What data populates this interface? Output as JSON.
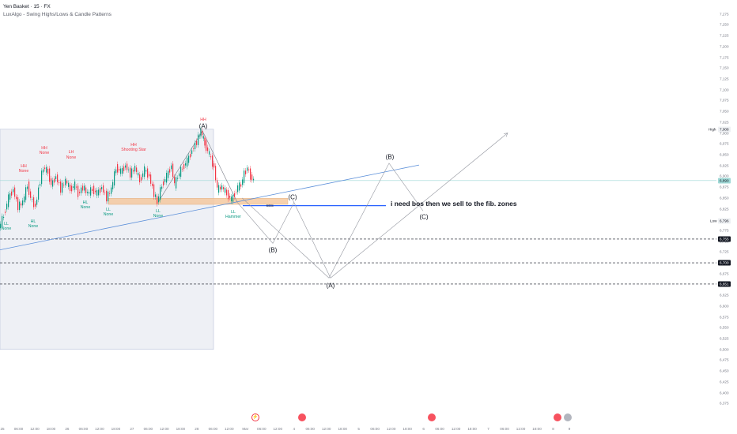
{
  "header": {
    "title": "Yen Basket · 15 · FX",
    "indicator": "LuxAlgo - Swing Highs/Lows & Candle Patterns"
  },
  "colors": {
    "up": "#089981",
    "down": "#f23645",
    "trendline": "#5b8fd9",
    "bos": "#2962ff",
    "zone": "#f5c9a0",
    "box": "#eef0f5"
  },
  "chart_data": {
    "type": "candlestick",
    "symbol": "Yen Basket",
    "interval": "15",
    "ylim": [
      6.35,
      7.3
    ],
    "y_ticks": [
      "7,275",
      "7,250",
      "7,225",
      "7,200",
      "7,175",
      "7,150",
      "7,125",
      "7,100",
      "7,075",
      "7,050",
      "7,025",
      "7,000",
      "6,975",
      "6,950",
      "6,925",
      "6,900",
      "6,875",
      "6,850",
      "6,825",
      "6,800",
      "6,775",
      "6,750",
      "6,725",
      "6,700",
      "6,675",
      "6,650",
      "6,625",
      "6,600",
      "6,575",
      "6,550",
      "6,525",
      "6,500",
      "6,475",
      "6,450",
      "6,425",
      "6,400",
      "6,375"
    ],
    "x_ticks": [
      "25",
      "06:00",
      "12:00",
      "18:00",
      "26",
      "06:00",
      "12:00",
      "18:00",
      "27",
      "06:00",
      "12:00",
      "18:00",
      "28",
      "06:00",
      "12:00",
      "Mar",
      "06:00",
      "12:00",
      "4",
      "06:00",
      "12:00",
      "18:00",
      "5",
      "06:00",
      "12:00",
      "18:00",
      "6",
      "06:00",
      "12:00",
      "18:00",
      "7",
      "06:00",
      "12:00",
      "18:00",
      "8",
      "9"
    ],
    "series_path": [
      [
        0,
        6.78
      ],
      [
        6,
        6.81
      ],
      [
        12,
        6.85
      ],
      [
        18,
        6.87
      ],
      [
        24,
        6.83
      ],
      [
        30,
        6.84
      ],
      [
        36,
        6.88
      ],
      [
        40,
        6.85
      ],
      [
        46,
        6.83
      ],
      [
        52,
        6.89
      ],
      [
        56,
        6.92
      ],
      [
        62,
        6.91
      ],
      [
        66,
        6.88
      ],
      [
        72,
        6.9
      ],
      [
        78,
        6.87
      ],
      [
        84,
        6.89
      ],
      [
        90,
        6.87
      ],
      [
        96,
        6.88
      ],
      [
        100,
        6.86
      ],
      [
        106,
        6.875
      ],
      [
        112,
        6.86
      ],
      [
        118,
        6.87
      ],
      [
        124,
        6.86
      ],
      [
        130,
        6.875
      ],
      [
        136,
        6.85
      ],
      [
        142,
        6.87
      ],
      [
        148,
        6.92
      ],
      [
        154,
        6.91
      ],
      [
        160,
        6.925
      ],
      [
        166,
        6.905
      ],
      [
        172,
        6.92
      ],
      [
        178,
        6.89
      ],
      [
        184,
        6.915
      ],
      [
        190,
        6.9
      ],
      [
        196,
        6.86
      ],
      [
        200,
        6.84
      ],
      [
        206,
        6.88
      ],
      [
        212,
        6.9
      ],
      [
        218,
        6.925
      ],
      [
        222,
        6.88
      ],
      [
        226,
        6.9
      ],
      [
        232,
        6.92
      ],
      [
        238,
        6.935
      ],
      [
        244,
        6.96
      ],
      [
        250,
        6.98
      ],
      [
        255,
        7.005
      ],
      [
        260,
        6.975
      ],
      [
        266,
        6.95
      ],
      [
        272,
        6.92
      ],
      [
        276,
        6.87
      ],
      [
        282,
        6.875
      ],
      [
        288,
        6.86
      ],
      [
        294,
        6.845
      ],
      [
        298,
        6.86
      ],
      [
        302,
        6.875
      ],
      [
        306,
        6.88
      ],
      [
        310,
        6.905
      ],
      [
        314,
        6.92
      ],
      [
        318,
        6.9
      ],
      [
        322,
        6.89
      ]
    ],
    "last_price": "6,890",
    "high_marker": {
      "label": "High",
      "value": "7,008"
    },
    "low_marker": {
      "label": "Low",
      "value": "6,796"
    },
    "levels": [
      {
        "value": 6.755,
        "label": "6,755"
      },
      {
        "value": 6.7,
        "label": "6,700"
      },
      {
        "value": 6.651,
        "label": "6,651"
      }
    ],
    "bos_level": 6.832,
    "bos_label": "BOS",
    "demand_zone": {
      "low": 6.835,
      "high": 6.849
    },
    "swing_labels": [
      {
        "x": 8,
        "price": 6.795,
        "kind": "bottom",
        "lines": [
          "LL",
          "None"
        ]
      },
      {
        "x": 30,
        "price": 6.928,
        "kind": "top",
        "lines": [
          "HH",
          "None"
        ]
      },
      {
        "x": 42,
        "price": 6.8,
        "kind": "bottom",
        "lines": [
          "HL",
          "None"
        ]
      },
      {
        "x": 56,
        "price": 6.97,
        "kind": "top",
        "lines": [
          "HH",
          "None"
        ]
      },
      {
        "x": 90,
        "price": 6.96,
        "kind": "top",
        "lines": [
          "LH",
          "None"
        ]
      },
      {
        "x": 108,
        "price": 6.845,
        "kind": "bottom",
        "lines": [
          "HL",
          "None"
        ]
      },
      {
        "x": 137,
        "price": 6.828,
        "kind": "bottom",
        "lines": [
          "LL",
          "None"
        ]
      },
      {
        "x": 169,
        "price": 6.978,
        "kind": "top",
        "lines": [
          "HH",
          "Shooting Star"
        ]
      },
      {
        "x": 200,
        "price": 6.825,
        "kind": "bottom",
        "lines": [
          "LL",
          "None"
        ]
      },
      {
        "x": 257,
        "price": 7.035,
        "kind": "top",
        "lines": [
          "HH"
        ]
      },
      {
        "x": 295,
        "price": 6.822,
        "kind": "bottom",
        "lines": [
          "LL",
          "Hammer"
        ]
      }
    ],
    "annotations": [
      {
        "text": "(A)",
        "x": 257,
        "price": 7.015
      },
      {
        "text": "(B)",
        "x": 345,
        "price": 6.73
      },
      {
        "text": "(C)",
        "x": 370,
        "price": 6.852
      },
      {
        "text": "(A)",
        "x": 418,
        "price": 6.648
      },
      {
        "text": "(B)",
        "x": 493,
        "price": 6.944
      },
      {
        "text": "(C)",
        "x": 536,
        "price": 6.806
      }
    ],
    "projection_paths": [
      [
        [
          300,
          6.84
        ],
        [
          345,
          6.745
        ],
        [
          372,
          6.84
        ]
      ],
      [
        [
          306,
          6.85
        ],
        [
          416,
          6.665
        ],
        [
          492,
          6.93
        ],
        [
          535,
          6.82
        ]
      ],
      [
        [
          370,
          6.846
        ],
        [
          418,
          6.665
        ],
        [
          642,
          7.0
        ]
      ]
    ],
    "trendline": {
      "from": [
        0,
        6.73
      ],
      "to": [
        530,
        6.926
      ]
    },
    "swing_lines": [
      [
        [
          200,
          6.84
        ],
        [
          256,
          7.005
        ],
        [
          300,
          6.84
        ]
      ]
    ],
    "note": "i need  bos then we sell to the fib. zones"
  }
}
